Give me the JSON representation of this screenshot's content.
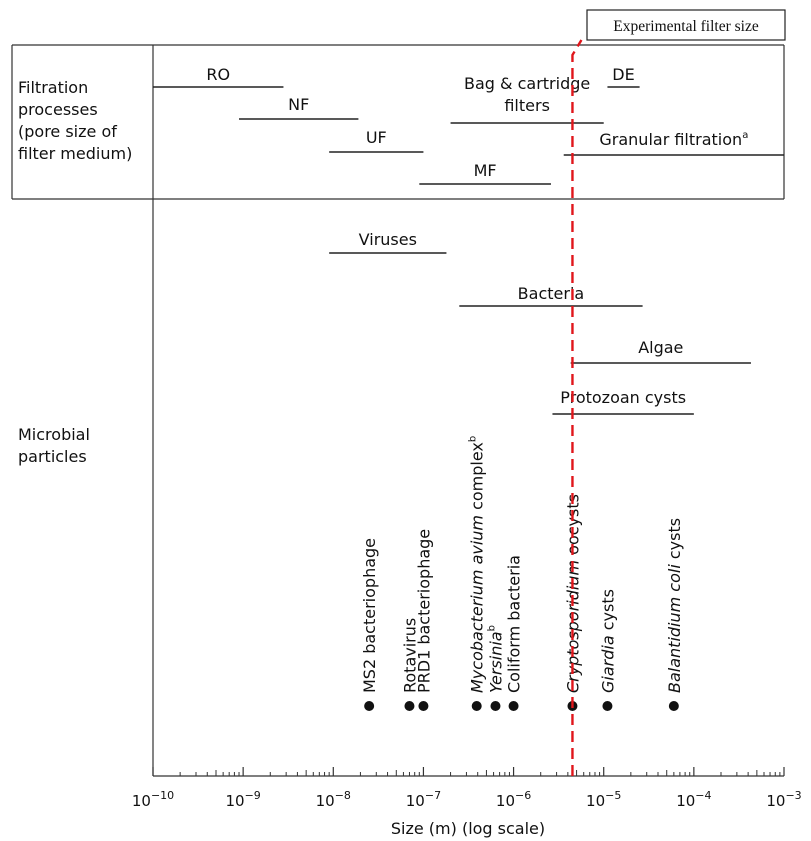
{
  "chart_data": {
    "type": "scatter",
    "xlabel": "Size (m) (log scale)",
    "xscale": "log",
    "xlim": [
      1e-10,
      0.001
    ],
    "x_ticks": [
      {
        "value": 1e-10,
        "label": "10",
        "exp": "−10"
      },
      {
        "value": 1e-09,
        "label": "10",
        "exp": "−9"
      },
      {
        "value": 1e-08,
        "label": "10",
        "exp": "−8"
      },
      {
        "value": 1e-07,
        "label": "10",
        "exp": "−7"
      },
      {
        "value": 1e-06,
        "label": "10",
        "exp": "−6"
      },
      {
        "value": 1e-05,
        "label": "10",
        "exp": "−5"
      },
      {
        "value": 0.0001,
        "label": "10",
        "exp": "−4"
      },
      {
        "value": 0.001,
        "label": "10",
        "exp": "−3"
      }
    ],
    "grid": false,
    "row_labels": {
      "filtration": [
        "Filtration",
        "processes",
        "(pore size of",
        "filter medium)"
      ],
      "microbial": [
        "Microbial",
        "particles"
      ]
    },
    "filtration_processes": [
      {
        "name": "RO",
        "range": [
          1e-10,
          2.8e-09
        ]
      },
      {
        "name": "NF",
        "range": [
          9e-10,
          1.9e-08
        ]
      },
      {
        "name": "UF",
        "range": [
          9e-09,
          1e-07
        ]
      },
      {
        "name": "MF",
        "range": [
          9e-08,
          2.6e-06
        ]
      },
      {
        "name": "Bag & cartridge",
        "name_line2": "filters",
        "range": [
          2e-07,
          1e-05
        ]
      },
      {
        "name": "DE",
        "range": [
          1.1e-05,
          2.5e-05
        ]
      },
      {
        "name": "Granular filtration",
        "superscript": "a",
        "range": [
          3.6e-06,
          0.001
        ]
      }
    ],
    "microbial_ranges": [
      {
        "name": "Viruses",
        "range": [
          9e-09,
          1.8e-07
        ]
      },
      {
        "name": "Bacteria",
        "range": [
          2.5e-07,
          2.7e-05
        ]
      },
      {
        "name": "Algae",
        "range": [
          4.3e-06,
          0.00043
        ]
      },
      {
        "name": "Protozoan cysts",
        "range": [
          2.7e-06,
          0.0001
        ]
      }
    ],
    "organisms": [
      {
        "parts": [
          {
            "t": "MS2 bacteriophage",
            "i": false
          }
        ],
        "x": 2.5e-08
      },
      {
        "parts": [
          {
            "t": "Rotavirus",
            "i": false
          }
        ],
        "x": 7e-08
      },
      {
        "parts": [
          {
            "t": "PRD1 bacteriophage",
            "i": false
          }
        ],
        "x": 1e-07
      },
      {
        "parts": [
          {
            "t": "Mycobacterium avium",
            "i": true
          },
          {
            "t": " complex",
            "i": false
          }
        ],
        "sup": "b",
        "x": 3.9e-07
      },
      {
        "parts": [
          {
            "t": "Yersinia",
            "i": true
          }
        ],
        "sup": "b",
        "x": 6.3e-07
      },
      {
        "parts": [
          {
            "t": "Coliform bacteria",
            "i": false
          }
        ],
        "x": 1e-06
      },
      {
        "parts": [
          {
            "t": "Cryptosporidium",
            "i": true
          },
          {
            "t": " oocysts",
            "i": false
          }
        ],
        "x": 4.5e-06
      },
      {
        "parts": [
          {
            "t": "Giardia",
            "i": true
          },
          {
            "t": " cysts",
            "i": false
          }
        ],
        "x": 1.1e-05
      },
      {
        "parts": [
          {
            "t": "Balantidium coli",
            "i": true
          },
          {
            "t": " cysts",
            "i": false
          }
        ],
        "x": 6e-05
      }
    ],
    "annotations": [
      {
        "text": "Experimental filter size",
        "x": 4.5e-06,
        "line_style": "dashed",
        "color": "#e0161b"
      }
    ]
  }
}
